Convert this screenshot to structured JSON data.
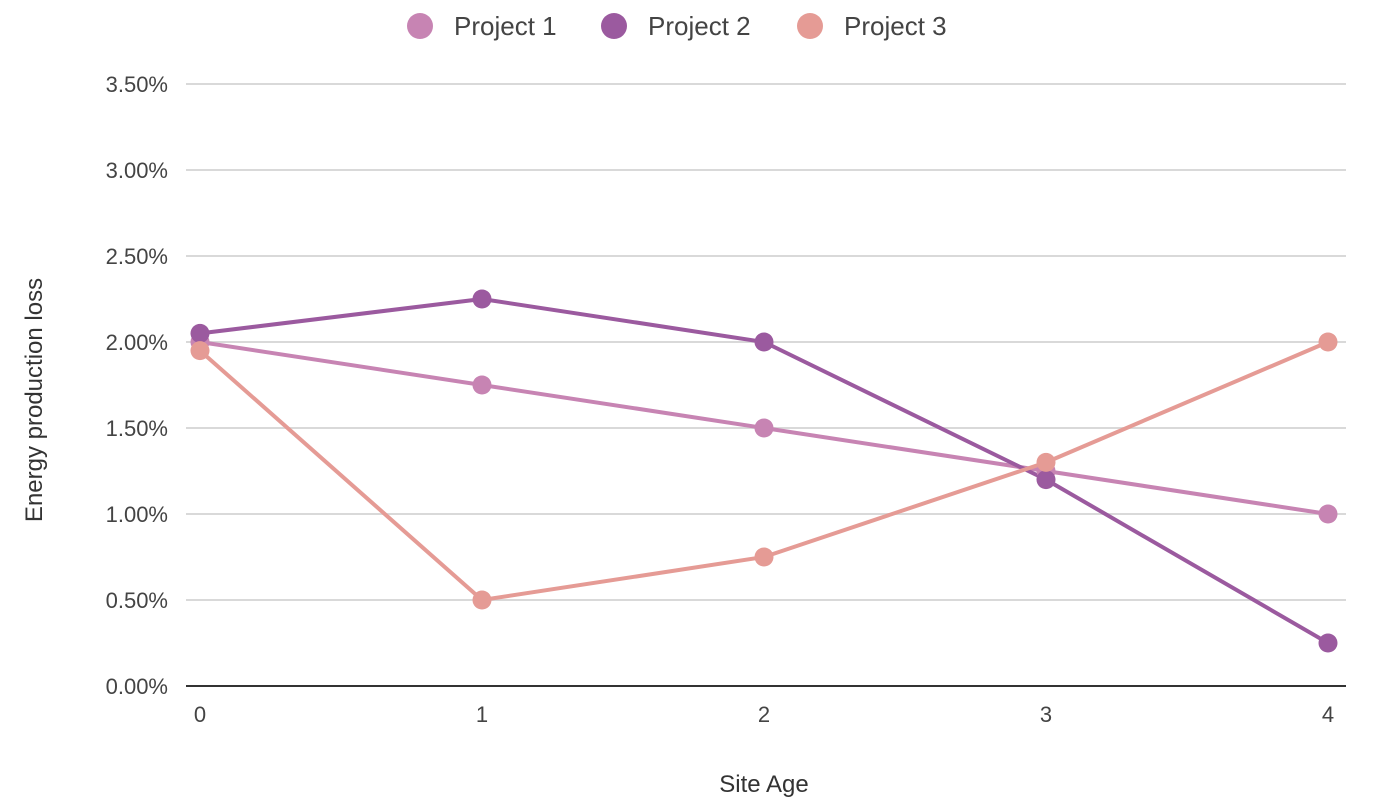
{
  "chart_data": {
    "type": "line",
    "title": "",
    "xlabel": "Site Age",
    "ylabel": "Energy production loss",
    "x": [
      0,
      1,
      2,
      3,
      4
    ],
    "x_tick_labels": [
      "0",
      "1",
      "2",
      "3",
      "4"
    ],
    "ylim": [
      0,
      3.5
    ],
    "y_ticks": [
      0,
      0.5,
      1.0,
      1.5,
      2.0,
      2.5,
      3.0,
      3.5
    ],
    "y_tick_labels": [
      "0.00%",
      "0.50%",
      "1.00%",
      "1.50%",
      "2.00%",
      "2.50%",
      "3.00%",
      "3.50%"
    ],
    "y_unit": "%",
    "grid": true,
    "legend_position": "top",
    "series": [
      {
        "name": "Project 1",
        "color": "#c784b3",
        "values": [
          2.0,
          1.75,
          1.5,
          1.25,
          1.0
        ]
      },
      {
        "name": "Project 2",
        "color": "#9b5a9f",
        "values": [
          2.05,
          2.25,
          2.0,
          1.2,
          0.25
        ]
      },
      {
        "name": "Project 3",
        "color": "#e59b95",
        "values": [
          1.95,
          0.5,
          0.75,
          1.3,
          2.0
        ]
      }
    ]
  }
}
